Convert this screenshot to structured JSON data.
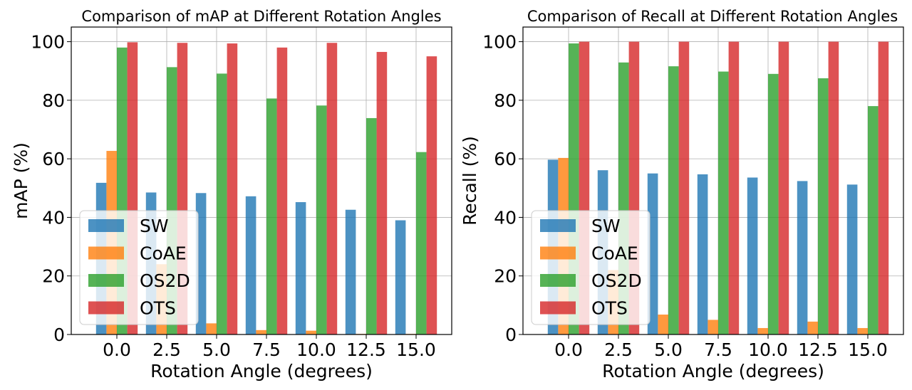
{
  "chart_data": [
    {
      "type": "bar",
      "title": "Comparison of mAP at Different Rotation Angles",
      "xlabel": "Rotation Angle (degrees)",
      "ylabel": "mAP (%)",
      "ylim": [
        0,
        105
      ],
      "yticks": [
        0,
        20,
        40,
        60,
        80,
        100
      ],
      "grid": true,
      "legend_position": "lower-left",
      "categories": [
        "0.0",
        "2.5",
        "5.0",
        "7.5",
        "10.0",
        "12.5",
        "15.0"
      ],
      "series": [
        {
          "name": "SW",
          "color": "#1f77b4",
          "values": [
            51.8,
            48.5,
            48.3,
            47.2,
            45.2,
            42.6,
            39.0
          ]
        },
        {
          "name": "CoAE",
          "color": "#ff7f0e",
          "values": [
            62.7,
            24.0,
            3.8,
            1.5,
            1.3,
            0.2,
            0.2
          ]
        },
        {
          "name": "OS2D",
          "color": "#2ca02c",
          "values": [
            98.0,
            91.3,
            89.1,
            80.6,
            78.2,
            73.9,
            62.3
          ]
        },
        {
          "name": "OTS",
          "color": "#d62728",
          "values": [
            99.8,
            99.6,
            99.4,
            98.0,
            99.6,
            96.5,
            95.0
          ]
        }
      ]
    },
    {
      "type": "bar",
      "title": "Comparison of Recall at Different Rotation Angles",
      "xlabel": "Rotation Angle (degrees)",
      "ylabel": "Recall (%)",
      "ylim": [
        0,
        105
      ],
      "yticks": [
        0,
        20,
        40,
        60,
        80,
        100
      ],
      "grid": true,
      "legend_position": "lower-left",
      "categories": [
        "0.0",
        "2.5",
        "5.0",
        "7.5",
        "10.0",
        "12.5",
        "15.0"
      ],
      "series": [
        {
          "name": "SW",
          "color": "#1f77b4",
          "values": [
            59.7,
            56.1,
            55.0,
            54.7,
            53.6,
            52.4,
            51.2
          ]
        },
        {
          "name": "CoAE",
          "color": "#ff7f0e",
          "values": [
            60.3,
            22.0,
            6.8,
            5.0,
            2.2,
            4.4,
            2.2
          ]
        },
        {
          "name": "OS2D",
          "color": "#2ca02c",
          "values": [
            99.4,
            92.9,
            91.6,
            89.8,
            89.0,
            87.5,
            78.0
          ]
        },
        {
          "name": "OTS",
          "color": "#d62728",
          "values": [
            100.0,
            100.0,
            100.0,
            100.0,
            100.0,
            100.0,
            100.0
          ]
        }
      ]
    }
  ]
}
